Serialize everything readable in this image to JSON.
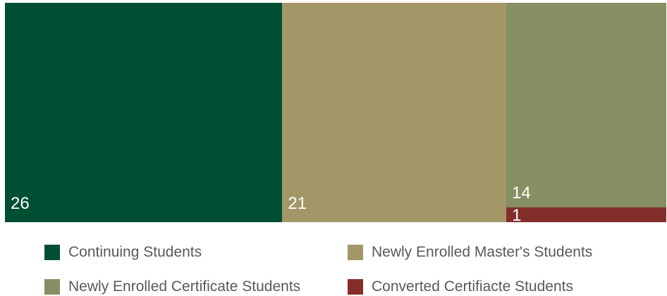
{
  "chart_data": {
    "type": "treemap",
    "title": "",
    "items": [
      {
        "name": "Continuing Students",
        "value": 26,
        "label": "26",
        "color": "#004f32"
      },
      {
        "name": "Newly Enrolled Master's Students",
        "value": 21,
        "label": "21",
        "color": "#a39768"
      },
      {
        "name": "Newly Enrolled Certificate Students",
        "value": 14,
        "label": "14",
        "color": "#858f63"
      },
      {
        "name": "Converted Certifiacte Students",
        "value": 1,
        "label": "1",
        "color": "#832e2a"
      }
    ],
    "legend": {
      "position": "bottom",
      "columns": 2
    }
  }
}
